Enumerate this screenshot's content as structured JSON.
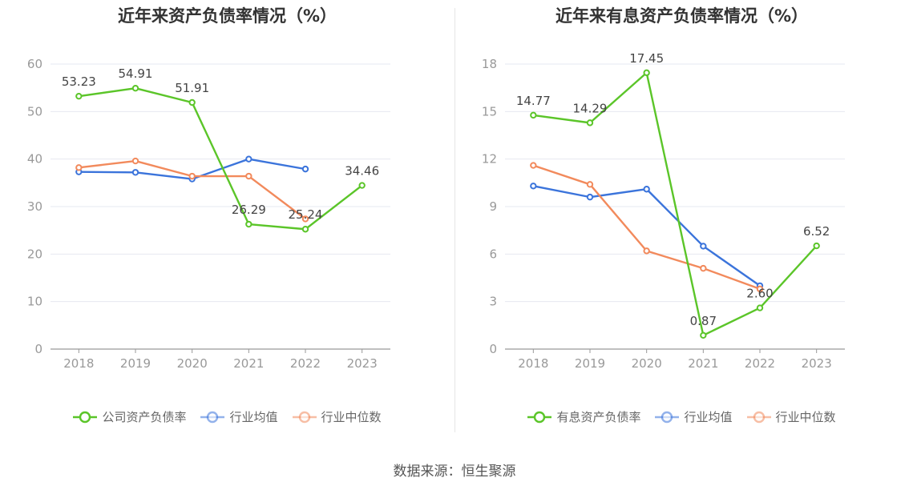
{
  "colors": {
    "green": "#5bc529",
    "blue": "#3b74db",
    "orange": "#f28a5c",
    "grid": "#e6e8f0",
    "axis": "#999999",
    "label": "#999999",
    "datalabel": "#444444"
  },
  "source": "数据来源：恒生聚源",
  "chart_data": [
    {
      "type": "line",
      "title": "近年来资产负债率情况（%）",
      "categories": [
        "2018",
        "2019",
        "2020",
        "2021",
        "2022",
        "2023"
      ],
      "ylim": [
        0,
        60
      ],
      "yticks": [
        0,
        10,
        20,
        30,
        40,
        50,
        60
      ],
      "ytick_labels": [
        "0",
        "10",
        "20",
        "30",
        "40",
        "50",
        "60"
      ],
      "grid": true,
      "legend": "bottom",
      "series": [
        {
          "name": "公司资产负债率",
          "color": "green",
          "values": [
            53.23,
            54.91,
            51.91,
            26.29,
            25.24,
            34.46
          ],
          "labels": [
            "53.23",
            "54.91",
            "51.91",
            "26.29",
            "25.24",
            "34.46"
          ]
        },
        {
          "name": "行业均值",
          "color": "blue",
          "values": [
            37.3,
            37.2,
            35.8,
            40.0,
            37.9,
            null
          ]
        },
        {
          "name": "行业中位数",
          "color": "orange",
          "values": [
            38.2,
            39.6,
            36.4,
            36.4,
            27.4,
            null
          ]
        }
      ]
    },
    {
      "type": "line",
      "title": "近年来有息资产负债率情况（%）",
      "categories": [
        "2018",
        "2019",
        "2020",
        "2021",
        "2022",
        "2023"
      ],
      "ylim": [
        0,
        18
      ],
      "yticks": [
        0,
        3,
        6,
        9,
        12,
        15,
        18
      ],
      "ytick_labels": [
        "0",
        "3",
        "6",
        "9",
        "12",
        "15",
        "18"
      ],
      "grid": true,
      "legend": "bottom",
      "series": [
        {
          "name": "有息资产负债率",
          "color": "green",
          "values": [
            14.77,
            14.29,
            17.45,
            0.87,
            2.6,
            6.52
          ],
          "labels": [
            "14.77",
            "14.29",
            "17.45",
            "0.87",
            "2.60",
            "6.52"
          ]
        },
        {
          "name": "行业均值",
          "color": "blue",
          "values": [
            10.3,
            9.6,
            10.1,
            6.5,
            4.0,
            null
          ]
        },
        {
          "name": "行业中位数",
          "color": "orange",
          "values": [
            11.6,
            10.4,
            6.2,
            5.1,
            3.8,
            null
          ]
        }
      ]
    }
  ]
}
